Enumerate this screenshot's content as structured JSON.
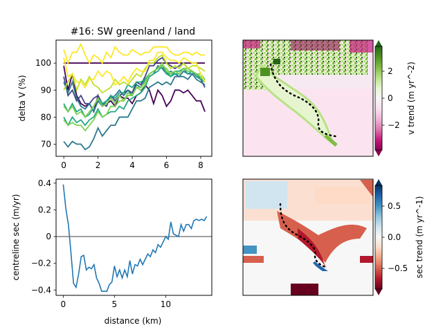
{
  "figure": {
    "title": "#16: SW greenland / land"
  },
  "chart_data": [
    {
      "id": "velocity-profiles",
      "type": "line",
      "title": "#16: SW greenland / land",
      "xlabel": "",
      "ylabel": "delta V (%)",
      "xlim": [
        -0.45,
        8.65
      ],
      "ylim": [
        65.5,
        108.5
      ],
      "xticks": [
        0,
        2,
        4,
        6,
        8
      ],
      "yticks": [
        70,
        80,
        90,
        100
      ],
      "grid": false,
      "x": [
        0.0,
        0.25,
        0.5,
        0.75,
        1.0,
        1.25,
        1.5,
        1.75,
        2.0,
        2.25,
        2.5,
        2.75,
        3.0,
        3.25,
        3.5,
        3.75,
        4.0,
        4.25,
        4.5,
        4.75,
        5.0,
        5.25,
        5.5,
        5.75,
        6.0,
        6.25,
        6.5,
        6.75,
        7.0,
        7.25,
        7.5,
        7.75,
        8.0,
        8.25
      ],
      "series": [
        {
          "color": "#440154",
          "values": [
            99,
            90,
            96,
            88,
            85,
            84,
            85,
            82,
            88,
            84,
            85,
            86,
            84,
            88,
            87,
            87,
            85,
            88,
            89,
            92,
            90,
            85,
            90,
            88,
            84,
            86,
            90,
            90,
            89,
            90,
            88,
            86,
            86,
            82
          ]
        },
        {
          "color": "#440154",
          "values": [
            100,
            100,
            100,
            100,
            100,
            100,
            100,
            100,
            100,
            100,
            100,
            100,
            100,
            100,
            100,
            100,
            100,
            100,
            100,
            100,
            100,
            100,
            100,
            100,
            100,
            100,
            100,
            100,
            100,
            100,
            100,
            100,
            100,
            100
          ]
        },
        {
          "color": "#414487",
          "values": [
            95,
            88,
            90,
            86,
            88,
            85,
            85,
            87,
            88,
            85,
            84,
            88,
            86,
            88,
            89,
            90,
            89,
            93,
            92,
            95,
            99,
            99,
            101,
            102,
            100,
            99,
            98,
            99,
            100,
            98,
            97,
            95,
            94,
            91
          ]
        },
        {
          "color": "#2a788e",
          "values": [
            93,
            89,
            93,
            87,
            84,
            83,
            85,
            82,
            86,
            84,
            86,
            87,
            88,
            90,
            88,
            90,
            88,
            92,
            91,
            94,
            95,
            96,
            99,
            98,
            96,
            97,
            96,
            95,
            97,
            96,
            96,
            94,
            93,
            92
          ]
        },
        {
          "color": "#2a788e",
          "values": [
            71,
            69,
            71,
            70,
            70,
            68,
            69,
            72,
            76,
            73,
            75,
            77,
            77,
            80,
            80,
            80,
            83,
            86,
            86,
            87,
            91,
            92,
            93,
            92,
            93,
            92,
            95,
            95,
            95,
            94,
            96,
            96,
            94,
            94
          ]
        },
        {
          "color": "#22a884",
          "values": [
            85,
            82,
            85,
            82,
            83,
            80,
            81,
            84,
            87,
            85,
            86,
            88,
            87,
            89,
            89,
            92,
            91,
            93,
            93,
            94,
            96,
            97,
            98,
            99,
            97,
            95,
            96,
            96,
            98,
            97,
            97,
            95,
            95,
            93
          ]
        },
        {
          "color": "#22a884",
          "values": [
            80,
            77,
            80,
            78,
            79,
            77,
            79,
            80,
            83,
            80,
            81,
            82,
            82,
            84,
            83,
            86,
            87,
            88,
            89,
            91,
            95,
            96,
            97,
            99,
            96,
            95,
            97,
            97,
            98,
            96,
            97,
            95,
            94,
            93
          ]
        },
        {
          "color": "#7ad151",
          "values": [
            84,
            82,
            84,
            81,
            82,
            80,
            82,
            84,
            87,
            84,
            85,
            87,
            85,
            88,
            86,
            89,
            88,
            91,
            90,
            92,
            96,
            97,
            98,
            99,
            98,
            96,
            97,
            96,
            98,
            98,
            97,
            96,
            96,
            94
          ]
        },
        {
          "color": "#7ad151",
          "values": [
            79,
            77,
            78,
            77,
            77,
            75,
            77,
            79,
            82,
            80,
            81,
            84,
            84,
            86,
            86,
            88,
            88,
            91,
            91,
            93,
            96,
            97,
            98,
            100,
            97,
            96,
            97,
            96,
            98,
            97,
            97,
            96,
            95,
            93
          ]
        },
        {
          "color": "#bddf26",
          "values": [
            90,
            93,
            96,
            90,
            94,
            92,
            95,
            92,
            91,
            89,
            90,
            91,
            94,
            92,
            93,
            92,
            94,
            96,
            95,
            98,
            100,
            100,
            102,
            103,
            100,
            98,
            99,
            98,
            100,
            98,
            99,
            99,
            98,
            97
          ]
        },
        {
          "color": "#fde725",
          "values": [
            105,
            100,
            104,
            104,
            107,
            103,
            100,
            103,
            102,
            100,
            104,
            102,
            106,
            104,
            103,
            103,
            105,
            104,
            103,
            104,
            104,
            106,
            106,
            106,
            106,
            104,
            103,
            103,
            104,
            104,
            103,
            104,
            103,
            103
          ]
        },
        {
          "color": "#fde725",
          "values": [
            102,
            95,
            96,
            93,
            93,
            91,
            94,
            94,
            97,
            95,
            97,
            96,
            92,
            93,
            95,
            93,
            96,
            98,
            97,
            97,
            101,
            101,
            104,
            104,
            102,
            101,
            101,
            100,
            102,
            101,
            100,
            100,
            96,
            93
          ]
        }
      ]
    },
    {
      "id": "centreline-sec",
      "type": "line",
      "title": "",
      "xlabel": "distance (km)",
      "ylabel": "centreline sec (m/yr)",
      "xlim": [
        -0.7,
        14.5
      ],
      "ylim": [
        -0.44,
        0.43
      ],
      "xticks": [
        0,
        5,
        10
      ],
      "yticks": [
        -0.4,
        -0.2,
        0.0,
        0.2,
        0.4
      ],
      "hline": 0.0,
      "series": [
        {
          "color": "#1f77b4",
          "x": [
            0.0,
            0.25,
            0.5,
            0.75,
            1.0,
            1.25,
            1.5,
            1.75,
            2.0,
            2.25,
            2.5,
            2.75,
            3.0,
            3.25,
            3.5,
            3.75,
            4.0,
            4.25,
            4.5,
            4.75,
            5.0,
            5.25,
            5.5,
            5.75,
            6.0,
            6.25,
            6.5,
            6.75,
            7.0,
            7.25,
            7.5,
            7.75,
            8.0,
            8.25,
            8.5,
            8.75,
            9.0,
            9.25,
            9.5,
            9.75,
            10.0,
            10.25,
            10.5,
            10.75,
            11.0,
            11.25,
            11.5,
            11.75,
            12.0,
            12.25,
            12.5,
            12.75,
            13.0,
            13.25,
            13.5,
            13.75,
            14.0
          ],
          "values": [
            0.39,
            0.21,
            0.09,
            -0.12,
            -0.35,
            -0.38,
            -0.28,
            -0.15,
            -0.14,
            -0.25,
            -0.23,
            -0.24,
            -0.21,
            -0.31,
            -0.35,
            -0.41,
            -0.41,
            -0.41,
            -0.36,
            -0.34,
            -0.22,
            -0.3,
            -0.25,
            -0.31,
            -0.25,
            -0.3,
            -0.18,
            -0.28,
            -0.21,
            -0.22,
            -0.17,
            -0.21,
            -0.17,
            -0.13,
            -0.15,
            -0.1,
            -0.12,
            -0.06,
            -0.08,
            -0.04,
            0.0,
            -0.02,
            0.11,
            0.02,
            0.01,
            0.0,
            0.09,
            0.04,
            0.09,
            0.09,
            0.06,
            0.12,
            0.13,
            0.12,
            0.13,
            0.12,
            0.15
          ]
        }
      ]
    }
  ],
  "maps": {
    "velocity_trend": {
      "colorbar_label": "v trend (m yr^-2)",
      "colorbar_ticks": [
        "2",
        "0",
        "−2"
      ],
      "colormap": [
        "#8e0152",
        "#c51b7d",
        "#de77ae",
        "#f1b6da",
        "#fde0ef",
        "#f7f7f7",
        "#e6f5d0",
        "#b8e186",
        "#7fbc41",
        "#4d9221",
        "#276419"
      ]
    },
    "sec_trend": {
      "colorbar_label": "sec trend (m yr^-1)",
      "colorbar_ticks": [
        "0.5",
        "0.0",
        "−0.5"
      ],
      "colormap": [
        "#67001f",
        "#b2182b",
        "#d6604d",
        "#f4a582",
        "#fddbc7",
        "#f7f7f7",
        "#d1e5f0",
        "#92c5de",
        "#4393c3",
        "#2166ac",
        "#053061"
      ]
    }
  }
}
